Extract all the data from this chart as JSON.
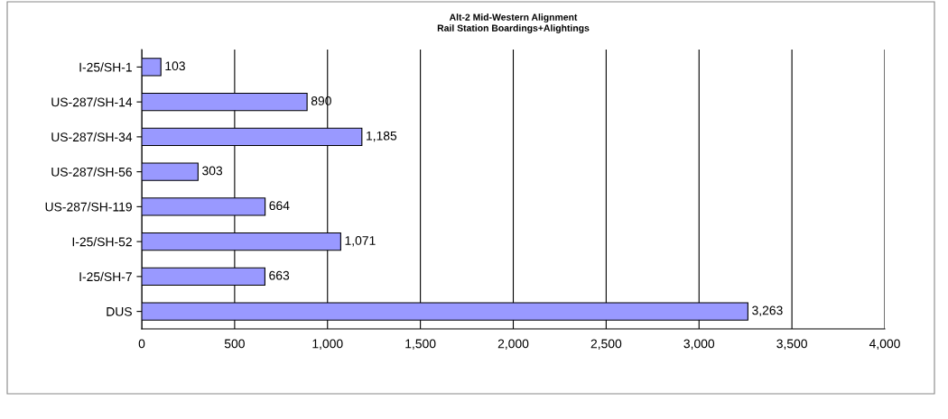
{
  "chart_data": {
    "type": "bar",
    "orientation": "horizontal",
    "title": "Alt-2 Mid-Western Alignment",
    "subtitle": "Rail Station Boardings+Alightings",
    "categories": [
      "I-25/SH-1",
      "US-287/SH-14",
      "US-287/SH-34",
      "US-287/SH-56",
      "US-287/SH-119",
      "I-25/SH-52",
      "I-25/SH-7",
      "DUS"
    ],
    "values": [
      103,
      890,
      1185,
      303,
      664,
      1071,
      663,
      3263
    ],
    "value_labels": [
      "103",
      "890",
      "1,185",
      "303",
      "664",
      "1,071",
      "663",
      "3,263"
    ],
    "color": "#9999ff",
    "xlim": [
      0,
      4000
    ],
    "xticks": [
      0,
      500,
      {
        "value": 1000,
        "label": "1,000"
      },
      {
        "value": 1500,
        "label": "1,500"
      },
      {
        "value": 2000,
        "label": "2,000"
      },
      {
        "value": 2500,
        "label": "2,500"
      },
      {
        "value": 3000,
        "label": "3,000"
      },
      {
        "value": 3500,
        "label": "3,500"
      },
      {
        "value": 4000,
        "label": "4,000"
      }
    ],
    "grid": "x",
    "legend": false
  }
}
